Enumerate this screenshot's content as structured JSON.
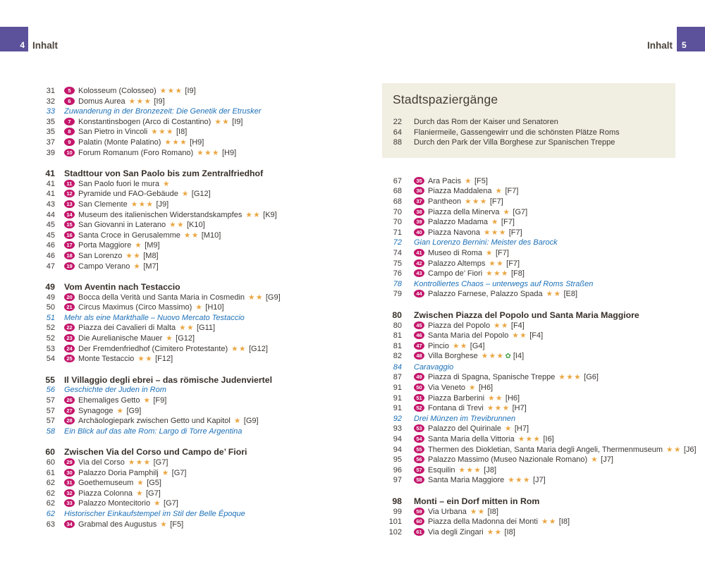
{
  "header": {
    "left_page_num": "4",
    "left_label": "Inhalt",
    "right_label": "Inhalt",
    "right_page_num": "5"
  },
  "colors": {
    "accent_purple": "#5b529b",
    "badge_pink": "#c4166b",
    "star_gold": "#eaa53f",
    "essay_blue": "#1d71b8",
    "box_beige": "#f1eee2"
  },
  "left_column": {
    "sections": [
      {
        "heading": null,
        "rows": [
          {
            "type": "entry",
            "page": "31",
            "badge": "5",
            "title": "Kolosseum (Colosseo)",
            "stars": 3,
            "grid": "[I9]"
          },
          {
            "type": "entry",
            "page": "32",
            "badge": "6",
            "title": "Domus Aurea",
            "stars": 3,
            "grid": "[I9]"
          },
          {
            "type": "essay",
            "page": "33",
            "title": "Zuwanderung in der Bronzezeit: Die Genetik der Etrusker"
          },
          {
            "type": "entry",
            "page": "35",
            "badge": "7",
            "title": "Konstantinsbogen (Arco di Costantino)",
            "stars": 2,
            "grid": "[I9]"
          },
          {
            "type": "entry",
            "page": "35",
            "badge": "8",
            "title": "San Pietro in Vincoli",
            "stars": 3,
            "grid": "[I8]"
          },
          {
            "type": "entry",
            "page": "37",
            "badge": "9",
            "title": "Palatin (Monte Palatino)",
            "stars": 3,
            "grid": "[H9]"
          },
          {
            "type": "entry",
            "page": "39",
            "badge": "10",
            "title": "Forum Romanum (Foro Romano)",
            "stars": 3,
            "grid": "[H9]"
          }
        ]
      },
      {
        "heading": {
          "page": "41",
          "title": "Stadttour von San Paolo bis zum Zentralfriedhof"
        },
        "rows": [
          {
            "type": "entry",
            "page": "41",
            "badge": "11",
            "title": "San Paolo fuori le mura",
            "stars": 1,
            "grid": ""
          },
          {
            "type": "entry",
            "page": "41",
            "badge": "12",
            "title": "Pyramide und FAO-Gebäude",
            "stars": 1,
            "grid": "[G12]"
          },
          {
            "type": "entry",
            "page": "43",
            "badge": "13",
            "title": "San Clemente",
            "stars": 3,
            "grid": "[J9]"
          },
          {
            "type": "entry",
            "page": "44",
            "badge": "14",
            "title": "Museum des italienischen Widerstandskampfes",
            "stars": 2,
            "grid": "[K9]"
          },
          {
            "type": "entry",
            "page": "45",
            "badge": "15",
            "title": "San Giovanni in Laterano",
            "stars": 2,
            "grid": "[K10]"
          },
          {
            "type": "entry",
            "page": "45",
            "badge": "16",
            "title": "Santa Croce in Gerusalemme",
            "stars": 2,
            "grid": "[M10]"
          },
          {
            "type": "entry",
            "page": "46",
            "badge": "17",
            "title": "Porta Maggiore",
            "stars": 1,
            "grid": "[M9]"
          },
          {
            "type": "entry",
            "page": "46",
            "badge": "18",
            "title": "San Lorenzo",
            "stars": 2,
            "grid": "[M8]"
          },
          {
            "type": "entry",
            "page": "47",
            "badge": "19",
            "title": "Campo Verano",
            "stars": 1,
            "grid": "[M7]"
          }
        ]
      },
      {
        "heading": {
          "page": "49",
          "title": "Vom Aventin nach Testaccio"
        },
        "rows": [
          {
            "type": "entry",
            "page": "49",
            "badge": "20",
            "title": "Bocca della Verità und Santa Maria in Cosmedin",
            "stars": 2,
            "grid": "[G9]"
          },
          {
            "type": "entry",
            "page": "50",
            "badge": "21",
            "title": "Circus Maximus (Circo Massimo)",
            "stars": 1,
            "grid": "[H10]"
          },
          {
            "type": "essay",
            "page": "51",
            "title": "Mehr als eine Markthalle – Nuovo Mercato Testaccio"
          },
          {
            "type": "entry",
            "page": "52",
            "badge": "22",
            "title": "Piazza dei Cavalieri di Malta",
            "stars": 2,
            "grid": "[G11]"
          },
          {
            "type": "entry",
            "page": "52",
            "badge": "23",
            "title": "Die Aurelianische Mauer",
            "stars": 1,
            "grid": "[G12]"
          },
          {
            "type": "entry",
            "page": "53",
            "badge": "24",
            "title": "Der Fremdenfriedhof (Cimitero Protestante)",
            "stars": 2,
            "grid": "[G12]"
          },
          {
            "type": "entry",
            "page": "54",
            "badge": "25",
            "title": "Monte Testaccio",
            "stars": 2,
            "grid": "[F12]"
          }
        ]
      },
      {
        "heading": {
          "page": "55",
          "title": "Il Villaggio degli ebrei – das römische Judenviertel"
        },
        "rows": [
          {
            "type": "essay",
            "page": "56",
            "title": "Geschichte der Juden in Rom"
          },
          {
            "type": "entry",
            "page": "57",
            "badge": "26",
            "title": "Ehemaliges Getto",
            "stars": 1,
            "grid": "[F9]"
          },
          {
            "type": "entry",
            "page": "57",
            "badge": "27",
            "title": "Synagoge",
            "stars": 1,
            "grid": "[G9]"
          },
          {
            "type": "entry",
            "page": "57",
            "badge": "28",
            "title": "Archäologiepark zwischen Getto und Kapitol",
            "stars": 1,
            "grid": "[G9]"
          },
          {
            "type": "essay",
            "page": "58",
            "title": "Ein Blick auf das alte Rom: Largo di Torre Argentina"
          }
        ]
      },
      {
        "heading": {
          "page": "60",
          "title": "Zwischen Via del Corso und Campo de’ Fiori"
        },
        "rows": [
          {
            "type": "entry",
            "page": "60",
            "badge": "29",
            "title": "Via del Corso",
            "stars": 3,
            "grid": "[G7]"
          },
          {
            "type": "entry",
            "page": "61",
            "badge": "30",
            "title": "Palazzo Doria Pamphilj",
            "stars": 1,
            "grid": "[G7]"
          },
          {
            "type": "entry",
            "page": "62",
            "badge": "31",
            "title": "Goethemuseum",
            "stars": 1,
            "grid": "[G5]"
          },
          {
            "type": "entry",
            "page": "62",
            "badge": "32",
            "title": "Piazza Colonna",
            "stars": 1,
            "grid": "[G7]"
          },
          {
            "type": "entry",
            "page": "62",
            "badge": "33",
            "title": "Palazzo Montecitorio",
            "stars": 1,
            "grid": "[G7]"
          },
          {
            "type": "essay",
            "page": "62",
            "title": "Historischer Einkaufstempel im Stil der Belle Époque"
          },
          {
            "type": "entry",
            "page": "63",
            "badge": "34",
            "title": "Grabmal des Augustus",
            "stars": 1,
            "grid": "[F5]"
          }
        ]
      }
    ]
  },
  "right_column": {
    "box": {
      "title": "Stadtspaziergänge",
      "items": [
        {
          "page": "22",
          "title": "Durch das Rom der Kaiser und Senatoren"
        },
        {
          "page": "64",
          "title": "Flaniermeile, Gassengewirr und die schönsten Plätze Roms"
        },
        {
          "page": "88",
          "title": "Durch den Park der Villa Borghese zur Spanischen Treppe"
        }
      ]
    },
    "sections": [
      {
        "heading": null,
        "rows": [
          {
            "type": "entry",
            "page": "67",
            "badge": "35",
            "title": "Ara Pacis",
            "stars": 1,
            "grid": "[F5]"
          },
          {
            "type": "entry",
            "page": "68",
            "badge": "36",
            "title": "Piazza Maddalena",
            "stars": 1,
            "grid": "[F7]"
          },
          {
            "type": "entry",
            "page": "68",
            "badge": "37",
            "title": "Pantheon",
            "stars": 3,
            "grid": "[F7]"
          },
          {
            "type": "entry",
            "page": "70",
            "badge": "38",
            "title": "Piazza della Minerva",
            "stars": 1,
            "grid": "[G7]"
          },
          {
            "type": "entry",
            "page": "70",
            "badge": "39",
            "title": "Palazzo Madama",
            "stars": 1,
            "grid": "[F7]"
          },
          {
            "type": "entry",
            "page": "71",
            "badge": "40",
            "title": "Piazza Navona",
            "stars": 3,
            "grid": "[F7]"
          },
          {
            "type": "essay",
            "page": "72",
            "title": "Gian Lorenzo Bernini: Meister des Barock"
          },
          {
            "type": "entry",
            "page": "74",
            "badge": "41",
            "title": "Museo di Roma",
            "stars": 1,
            "grid": "[F7]"
          },
          {
            "type": "entry",
            "page": "75",
            "badge": "42",
            "title": "Palazzo Altemps",
            "stars": 2,
            "grid": "[F7]"
          },
          {
            "type": "entry",
            "page": "76",
            "badge": "43",
            "title": "Campo de’ Fiori",
            "stars": 3,
            "grid": "[F8]"
          },
          {
            "type": "essay",
            "page": "78",
            "title": "Kontrolliertes Chaos – unterwegs auf Roms Straßen"
          },
          {
            "type": "entry",
            "page": "79",
            "badge": "44",
            "title": "Palazzo Farnese, Palazzo Spada",
            "stars": 2,
            "grid": "[E8]"
          }
        ]
      },
      {
        "heading": {
          "page": "80",
          "title": "Zwischen Piazza del Popolo und Santa Maria Maggiore"
        },
        "rows": [
          {
            "type": "entry",
            "page": "80",
            "badge": "45",
            "title": "Piazza del Popolo",
            "stars": 2,
            "grid": "[F4]"
          },
          {
            "type": "entry",
            "page": "81",
            "badge": "46",
            "title": "Santa Maria del Popolo",
            "stars": 2,
            "grid": "[F4]"
          },
          {
            "type": "entry",
            "page": "81",
            "badge": "47",
            "title": "Pincio",
            "stars": 2,
            "grid": "[G4]"
          },
          {
            "type": "entry",
            "page": "82",
            "badge": "48",
            "title": "Villa Borghese",
            "stars": 3,
            "park": true,
            "grid": "[I4]"
          },
          {
            "type": "essay",
            "page": "84",
            "title": "Caravaggio"
          },
          {
            "type": "entry",
            "page": "87",
            "badge": "49",
            "title": "Piazza di Spagna, Spanische Treppe",
            "stars": 3,
            "grid": "[G6]"
          },
          {
            "type": "entry",
            "page": "91",
            "badge": "50",
            "title": "Via Veneto",
            "stars": 1,
            "grid": "[H6]"
          },
          {
            "type": "entry",
            "page": "91",
            "badge": "51",
            "title": "Piazza Barberini",
            "stars": 2,
            "grid": "[H6]"
          },
          {
            "type": "entry",
            "page": "91",
            "badge": "52",
            "title": "Fontana di Trevi",
            "stars": 3,
            "grid": "[H7]"
          },
          {
            "type": "essay",
            "page": "92",
            "title": "Drei Münzen im Trevibrunnen"
          },
          {
            "type": "entry",
            "page": "93",
            "badge": "53",
            "title": "Palazzo del Quirinale",
            "stars": 1,
            "grid": "[H7]"
          },
          {
            "type": "entry",
            "page": "94",
            "badge": "54",
            "title": "Santa Maria della Vittoria",
            "stars": 3,
            "grid": "[I6]"
          },
          {
            "type": "entry",
            "page": "94",
            "badge": "55",
            "title": "Thermen des Diokletian, Santa Maria degli Angeli, Thermenmuseum",
            "stars": 2,
            "grid": "[J6]"
          },
          {
            "type": "entry",
            "page": "95",
            "badge": "56",
            "title": "Palazzo Massimo (Museo Nazionale Romano)",
            "stars": 1,
            "grid": "[J7]"
          },
          {
            "type": "entry",
            "page": "96",
            "badge": "57",
            "title": "Esquilin",
            "stars": 3,
            "grid": "[J8]"
          },
          {
            "type": "entry",
            "page": "97",
            "badge": "58",
            "title": "Santa Maria Maggiore",
            "stars": 3,
            "grid": "[J7]"
          }
        ]
      },
      {
        "heading": {
          "page": "98",
          "title": "Monti – ein Dorf mitten in Rom"
        },
        "rows": [
          {
            "type": "entry",
            "page": "99",
            "badge": "59",
            "title": "Via Urbana",
            "stars": 2,
            "grid": "[I8]"
          },
          {
            "type": "entry",
            "page": "101",
            "badge": "60",
            "title": "Piazza della Madonna dei Monti",
            "stars": 2,
            "grid": "[I8]"
          },
          {
            "type": "entry",
            "page": "102",
            "badge": "61",
            "title": "Via degli Zingari",
            "stars": 2,
            "grid": "[I8]"
          }
        ]
      }
    ]
  },
  "icons": {
    "star": "★",
    "park": "✿"
  }
}
